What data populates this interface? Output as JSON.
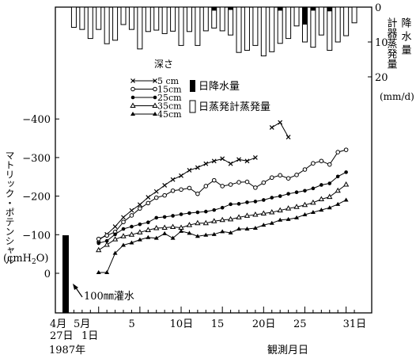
{
  "chart_data": {
    "type": "line",
    "x_unit_label": "観測月日",
    "year_label": "1987年",
    "date_start_label": "4月 27日",
    "date_may1_label": "5月 1日",
    "x_ticks": [
      {
        "day": 5,
        "label": "5"
      },
      {
        "day": 10,
        "label": "10日"
      },
      {
        "day": 15,
        "label": "15"
      },
      {
        "day": 20,
        "label": "20日"
      },
      {
        "day": 25,
        "label": "25"
      },
      {
        "day": 31,
        "label": "31日"
      }
    ],
    "ylabel": "マトリック・ポテンシャル",
    "ylabel_unit_pre": "(cmH",
    "ylabel_unit_sub": "2",
    "ylabel_unit_post": "O)",
    "y_ticks": [
      {
        "value": 0,
        "label": "0"
      },
      {
        "value": 100,
        "label": "−100"
      },
      {
        "value": 200,
        "label": "−200"
      },
      {
        "value": 300,
        "label": "−300"
      },
      {
        "value": 400,
        "label": "−400"
      }
    ],
    "ylim": [
      0,
      400
    ],
    "right_axis": {
      "label_col1": "降水量",
      "label_col2": "計器蒸発量",
      "unit": "(mm/d)",
      "ticks": [
        {
          "value": 0,
          "label": "0"
        },
        {
          "value": 10,
          "label": "10"
        },
        {
          "value": 20,
          "label": "20"
        }
      ]
    },
    "irrigation": {
      "day": 0,
      "amount_label": "100㎜灌水",
      "value": 100
    },
    "legend": {
      "title": "深さ",
      "rain_label": "日降水量",
      "evap_label": "日蒸発計蒸発量"
    },
    "series": [
      {
        "name": "5 cm",
        "marker": "x",
        "points": [
          [
            4,
            86
          ],
          [
            5,
            101
          ],
          [
            6,
            121
          ],
          [
            7,
            145
          ],
          [
            8,
            163
          ],
          [
            9,
            178
          ],
          [
            10,
            197
          ],
          [
            11,
            212
          ],
          [
            12,
            228
          ],
          [
            13,
            243
          ],
          [
            14,
            253
          ],
          [
            15,
            267
          ],
          [
            16,
            274
          ],
          [
            17,
            284
          ],
          [
            18,
            291
          ],
          [
            19,
            297
          ],
          [
            20,
            284
          ],
          [
            21,
            295
          ],
          [
            22,
            291
          ],
          [
            23,
            300
          ]
        ]
      }
    ],
    "series_late_5cm": [
      [
        25,
        378
      ],
      [
        26,
        391
      ],
      [
        27,
        353
      ]
    ],
    "series_rest": [
      {
        "name": "15cm",
        "marker": "open-circle",
        "points": [
          [
            4,
            89
          ],
          [
            5,
            98
          ],
          [
            6,
            107
          ],
          [
            7,
            133
          ],
          [
            8,
            150
          ],
          [
            9,
            168
          ],
          [
            10,
            182
          ],
          [
            11,
            196
          ],
          [
            12,
            202
          ],
          [
            13,
            214
          ],
          [
            14,
            217
          ],
          [
            15,
            221
          ],
          [
            16,
            206
          ],
          [
            17,
            226
          ],
          [
            18,
            241
          ],
          [
            19,
            226
          ],
          [
            20,
            230
          ],
          [
            21,
            236
          ],
          [
            22,
            237
          ],
          [
            23,
            222
          ],
          [
            24,
            235
          ],
          [
            25,
            248
          ],
          [
            26,
            254
          ],
          [
            27,
            246
          ],
          [
            28,
            255
          ],
          [
            29,
            269
          ],
          [
            30,
            285
          ],
          [
            31,
            291
          ],
          [
            32,
            282
          ],
          [
            33,
            314
          ],
          [
            34,
            320
          ]
        ]
      },
      {
        "name": "25cm",
        "marker": "filled-circle",
        "points": [
          [
            4,
            78
          ],
          [
            5,
            84
          ],
          [
            6,
            101
          ],
          [
            7,
            115
          ],
          [
            8,
            121
          ],
          [
            9,
            127
          ],
          [
            10,
            132
          ],
          [
            11,
            144
          ],
          [
            12,
            146
          ],
          [
            13,
            149
          ],
          [
            14,
            153
          ],
          [
            15,
            156
          ],
          [
            16,
            158
          ],
          [
            17,
            160
          ],
          [
            18,
            164
          ],
          [
            19,
            170
          ],
          [
            20,
            179
          ],
          [
            21,
            180
          ],
          [
            22,
            184
          ],
          [
            23,
            186
          ],
          [
            24,
            190
          ],
          [
            25,
            196
          ],
          [
            26,
            200
          ],
          [
            27,
            206
          ],
          [
            28,
            210
          ],
          [
            29,
            214
          ],
          [
            30,
            220
          ],
          [
            31,
            229
          ],
          [
            32,
            233
          ],
          [
            33,
            251
          ],
          [
            34,
            262
          ]
        ]
      },
      {
        "name": "35cm",
        "marker": "open-triangle",
        "points": [
          [
            4,
            60
          ],
          [
            5,
            74
          ],
          [
            6,
            88
          ],
          [
            7,
            96
          ],
          [
            8,
            100
          ],
          [
            9,
            106
          ],
          [
            10,
            112
          ],
          [
            11,
            117
          ],
          [
            12,
            118
          ],
          [
            13,
            120
          ],
          [
            14,
            118
          ],
          [
            15,
            125
          ],
          [
            16,
            130
          ],
          [
            17,
            130
          ],
          [
            18,
            135
          ],
          [
            19,
            138
          ],
          [
            20,
            140
          ],
          [
            21,
            145
          ],
          [
            22,
            149
          ],
          [
            23,
            152
          ],
          [
            24,
            155
          ],
          [
            25,
            158
          ],
          [
            26,
            163
          ],
          [
            27,
            168
          ],
          [
            28,
            172
          ],
          [
            29,
            177
          ],
          [
            30,
            183
          ],
          [
            31,
            192
          ],
          [
            32,
            198
          ],
          [
            33,
            214
          ],
          [
            34,
            230
          ]
        ]
      },
      {
        "name": "45cm",
        "marker": "filled-triangle",
        "points": [
          [
            4,
            2
          ],
          [
            5,
            2
          ],
          [
            6,
            52
          ],
          [
            7,
            73
          ],
          [
            8,
            79
          ],
          [
            9,
            87
          ],
          [
            10,
            93
          ],
          [
            11,
            91
          ],
          [
            12,
            103
          ],
          [
            13,
            91
          ],
          [
            14,
            109
          ],
          [
            15,
            104
          ],
          [
            16,
            96
          ],
          [
            17,
            99
          ],
          [
            18,
            101
          ],
          [
            19,
            108
          ],
          [
            20,
            105
          ],
          [
            21,
            115
          ],
          [
            22,
            115
          ],
          [
            23,
            117
          ],
          [
            24,
            125
          ],
          [
            25,
            130
          ],
          [
            26,
            138
          ],
          [
            27,
            140
          ],
          [
            28,
            144
          ],
          [
            29,
            152
          ],
          [
            30,
            158
          ],
          [
            31,
            164
          ],
          [
            32,
            170
          ],
          [
            33,
            179
          ],
          [
            34,
            190
          ]
        ]
      }
    ],
    "evaporation_mm": [
      5.8,
      6.4,
      9,
      6.4,
      10.5,
      9.5,
      5,
      6.4,
      12,
      7,
      6.6,
      7.6,
      6.9,
      11,
      7,
      11,
      6.8,
      6,
      6.8,
      8,
      13,
      12.4,
      11,
      14,
      12.8,
      10.4,
      9,
      5.4,
      10,
      11.5,
      8,
      12.4,
      10,
      8.2,
      4.5
    ],
    "rain_events": [
      {
        "day": 18,
        "mm": 1
      },
      {
        "day": 20,
        "mm": 0.8
      },
      {
        "day": 26,
        "mm": 1
      },
      {
        "day": 29,
        "mm": 5
      },
      {
        "day": 30,
        "mm": 1
      },
      {
        "day": 32,
        "mm": 1.2
      }
    ]
  }
}
